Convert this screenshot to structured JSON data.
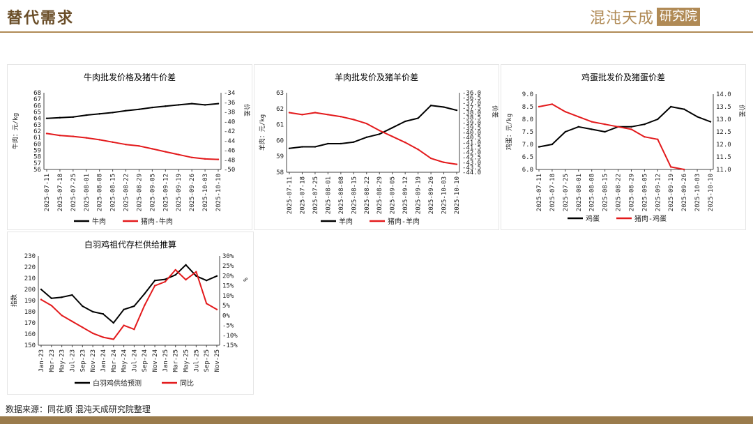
{
  "header": {
    "title": "替代需求",
    "brand_text": "混沌天成",
    "brand_box": "研究院"
  },
  "footer": {
    "source": "数据来源：同花顺 混沌天成研究院整理"
  },
  "colors": {
    "black": "#000000",
    "red": "#e31a1c",
    "accent": "#b08a55"
  },
  "chart_data": [
    {
      "type": "line",
      "title": "牛肉批发价格及猪牛价差",
      "ylabel": "牛肉：元/kg",
      "y2label": "价差",
      "ylim": [
        56,
        68
      ],
      "y2lim": [
        -50,
        -34
      ],
      "yticks": [
        56,
        57,
        58,
        59,
        60,
        61,
        62,
        63,
        64,
        65,
        66,
        67,
        68
      ],
      "y2ticks": [
        -34,
        -36,
        -38,
        -40,
        -42,
        -44,
        -46,
        -48,
        -50
      ],
      "x": [
        "2025-07-11",
        "2025-07-18",
        "2025-07-25",
        "2025-08-01",
        "2025-08-08",
        "2025-08-15",
        "2025-08-22",
        "2025-08-29",
        "2025-09-05",
        "2025-09-12",
        "2025-09-19",
        "2025-09-26",
        "2025-10-03",
        "2025-10-10"
      ],
      "series": [
        {
          "name": "牛肉",
          "axis": "left",
          "color": "#000000",
          "values": [
            64.0,
            64.1,
            64.2,
            64.5,
            64.7,
            64.9,
            65.2,
            65.4,
            65.7,
            65.9,
            66.1,
            66.3,
            66.1,
            66.3
          ]
        },
        {
          "name": "猪肉-牛肉",
          "axis": "right",
          "color": "#e31a1c",
          "values": [
            -42.5,
            -42.9,
            -43.1,
            -43.4,
            -43.8,
            -44.3,
            -44.8,
            -45.1,
            -45.7,
            -46.3,
            -46.9,
            -47.5,
            -47.8,
            -47.9
          ]
        }
      ],
      "legend": "bottom"
    },
    {
      "type": "line",
      "title": "羊肉批发价及猪羊价差",
      "ylabel": "羊肉：元/kg",
      "y2label": "价差",
      "ylim": [
        58,
        63
      ],
      "y2lim": [
        -44,
        -36
      ],
      "yticks": [
        58,
        59,
        60,
        61,
        62,
        63
      ],
      "y2ticks": [
        "-36.0",
        "-36.5",
        "-37.0",
        "-37.5",
        "-38.0",
        "-38.5",
        "-39.0",
        "-39.5",
        "-40.0",
        "-40.5",
        "-41.0",
        "-41.5",
        "-42.0",
        "-42.5",
        "-43.0",
        "-43.5",
        "-44.0"
      ],
      "x": [
        "2025-07-11",
        "2025-07-18",
        "2025-07-25",
        "2025-08-01",
        "2025-08-08",
        "2025-08-15",
        "2025-08-22",
        "2025-08-29",
        "2025-09-05",
        "2025-09-12",
        "2025-09-19",
        "2025-09-26",
        "2025-10-03",
        "2025-10-10"
      ],
      "series": [
        {
          "name": "羊肉",
          "axis": "left",
          "color": "#000000",
          "values": [
            59.5,
            59.6,
            59.6,
            59.8,
            59.8,
            59.9,
            60.2,
            60.4,
            60.8,
            61.2,
            61.4,
            62.2,
            62.1,
            61.9
          ]
        },
        {
          "name": "猪肉-羊肉",
          "axis": "right",
          "color": "#e31a1c",
          "values": [
            -38.0,
            -38.2,
            -38.0,
            -38.2,
            -38.4,
            -38.7,
            -39.1,
            -39.8,
            -40.4,
            -41.0,
            -41.7,
            -42.6,
            -43.0,
            -43.2
          ]
        }
      ],
      "legend": "bottom"
    },
    {
      "type": "line",
      "title": "鸡蛋批发价及猪蛋价差",
      "ylabel": "鸡蛋：元/kg",
      "y2label": "价差",
      "ylim": [
        6.0,
        9.0
      ],
      "y2lim": [
        11.0,
        14.0
      ],
      "yticks": [
        "6.0",
        "6.5",
        "7.0",
        "7.5",
        "8.0",
        "8.5",
        "9.0"
      ],
      "y2ticks": [
        "11.0",
        "11.5",
        "12.0",
        "12.5",
        "13.0",
        "13.5",
        "14.0"
      ],
      "x": [
        "2025-07-11",
        "2025-07-18",
        "2025-07-25",
        "2025-08-01",
        "2025-08-08",
        "2025-08-15",
        "2025-08-22",
        "2025-08-29",
        "2025-09-05",
        "2025-09-12",
        "2025-09-19",
        "2025-09-26",
        "2025-10-03",
        "2025-10-10"
      ],
      "series": [
        {
          "name": "鸡蛋",
          "axis": "left",
          "color": "#000000",
          "values": [
            6.9,
            7.0,
            7.5,
            7.7,
            7.6,
            7.5,
            7.7,
            7.7,
            7.8,
            8.0,
            8.5,
            8.4,
            8.1,
            7.9
          ]
        },
        {
          "name": "猪肉-鸡蛋",
          "axis": "right",
          "color": "#e31a1c",
          "values": [
            13.5,
            13.6,
            13.3,
            13.1,
            12.9,
            12.8,
            12.7,
            12.6,
            12.3,
            12.2,
            11.1,
            11.0,
            null,
            null
          ]
        }
      ],
      "legend": "bottom"
    },
    {
      "type": "line",
      "title": "白羽鸡祖代存栏供给推算",
      "ylabel": "指数",
      "y2label": "%",
      "ylim": [
        150,
        230
      ],
      "y2lim": [
        -15,
        30
      ],
      "yticks": [
        150,
        160,
        170,
        180,
        190,
        200,
        210,
        220,
        230
      ],
      "y2ticks": [
        "30%",
        "25%",
        "20%",
        "15%",
        "10%",
        "5%",
        "0%",
        "-5%",
        "-10%",
        "-15%"
      ],
      "x": [
        "Jan-23",
        "Mar-23",
        "May-23",
        "Jul-23",
        "Sep-23",
        "Nov-23",
        "Jan-24",
        "Mar-24",
        "May-24",
        "Jul-24",
        "Sep-24",
        "Nov-24",
        "Jan-25",
        "Mar-25",
        "May-25",
        "Jul-25",
        "Sep-25",
        "Nov-25"
      ],
      "series": [
        {
          "name": "白羽鸡供给预测",
          "axis": "left",
          "color": "#000000",
          "values": [
            200,
            192,
            193,
            195,
            185,
            180,
            178,
            170,
            182,
            185,
            196,
            208,
            209,
            213,
            222,
            212,
            208,
            212
          ]
        },
        {
          "name": "同比",
          "axis": "right",
          "color": "#e31a1c",
          "values": [
            8,
            5,
            0,
            -3,
            -6,
            -9,
            -11,
            -12,
            -5,
            -7,
            5,
            15,
            17,
            23,
            18,
            22,
            6,
            3
          ]
        }
      ],
      "legend": "bottom"
    }
  ]
}
